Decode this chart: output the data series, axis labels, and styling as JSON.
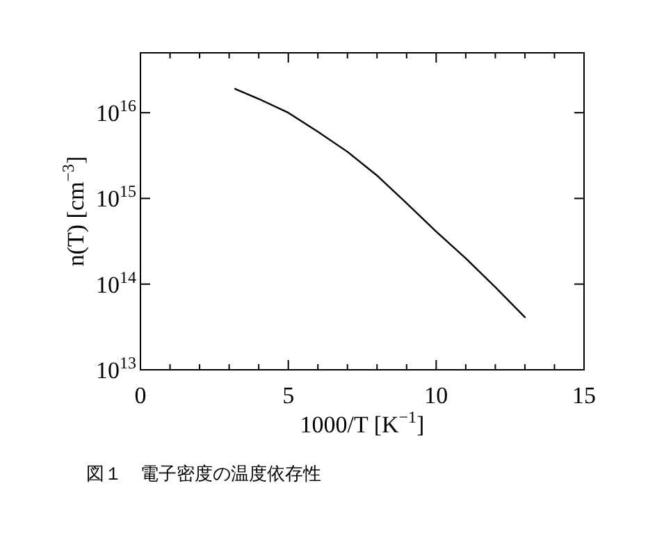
{
  "chart_data": {
    "type": "line",
    "xlabel": "1000/T  [K$^{−1}$]",
    "ylabel": "n(T)  [cm$^{−3}$]",
    "log": "y",
    "x": [
      3.2,
      4,
      5,
      6,
      7,
      8,
      9,
      10,
      11,
      12,
      13
    ],
    "series": [
      {
        "color": "#000000",
        "values": [
          1.9e+16,
          1.45e+16,
          1e+16,
          6000000000000000.0,
          3500000000000000.0,
          1850000000000000.0,
          880000000000000.0,
          410000000000000.0,
          200000000000000.0,
          92000000000000.0,
          41000000000000.0
        ]
      }
    ],
    "xlim": [
      0,
      15
    ],
    "ylim": [
      10000000000000.0,
      5e+16
    ],
    "xticks": [
      0,
      {
        "value": 1,
        "label": null
      },
      {
        "value": 2,
        "label": null
      },
      {
        "value": 3,
        "label": null
      },
      {
        "value": 4,
        "label": null
      },
      5,
      {
        "value": 6,
        "label": null
      },
      {
        "value": 7,
        "label": null
      },
      {
        "value": 8,
        "label": null
      },
      {
        "value": 9,
        "label": null
      },
      10,
      {
        "value": 11,
        "label": null
      },
      {
        "value": 12,
        "label": null
      },
      {
        "value": 13,
        "label": null
      },
      {
        "value": 14,
        "label": null
      },
      15
    ],
    "yticks": [
      {
        "value": 10000000000000.0,
        "label": "10$^{13}$"
      },
      {
        "value": 100000000000000.0,
        "label": "10$^{14}$"
      },
      {
        "value": 1000000000000000.0,
        "label": "10$^{15}$"
      },
      {
        "value": 1e+16,
        "label": "10$^{16}$"
      }
    ],
    "annotations": [
      "図１　電子密度の温度依存性"
    ]
  }
}
